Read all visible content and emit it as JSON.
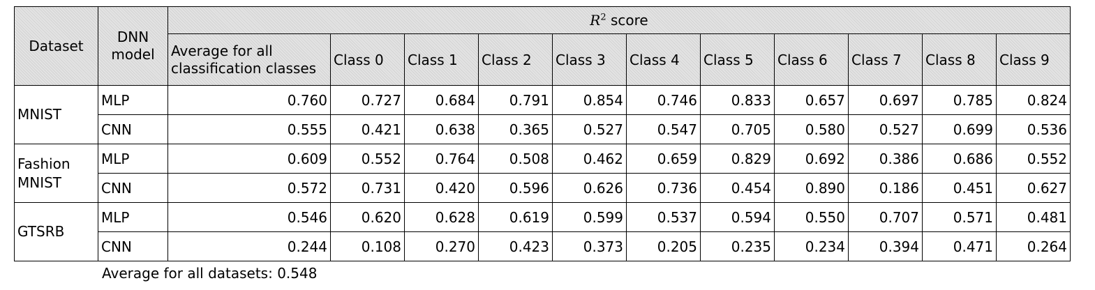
{
  "header": {
    "dataset_label": "Dataset",
    "model_label": "DNN model",
    "score_symbol": "R",
    "score_superscript": "2",
    "score_suffix": " score",
    "columns": [
      "Average for all classification classes",
      "Class 0",
      "Class 1",
      "Class 2",
      "Class 3",
      "Class 4",
      "Class 5",
      "Class 6",
      "Class 7",
      "Class 8",
      "Class 9"
    ]
  },
  "rows": [
    {
      "dataset": "MNIST",
      "model": "MLP",
      "values": [
        "0.760",
        "0.727",
        "0.684",
        "0.791",
        "0.854",
        "0.746",
        "0.833",
        "0.657",
        "0.697",
        "0.785",
        "0.824"
      ]
    },
    {
      "dataset": "MNIST",
      "model": "CNN",
      "values": [
        "0.555",
        "0.421",
        "0.638",
        "0.365",
        "0.527",
        "0.547",
        "0.705",
        "0.580",
        "0.527",
        "0.699",
        "0.536"
      ]
    },
    {
      "dataset": "Fashion MNIST",
      "model": "MLP",
      "values": [
        "0.609",
        "0.552",
        "0.764",
        "0.508",
        "0.462",
        "0.659",
        "0.829",
        "0.692",
        "0.386",
        "0.686",
        "0.552"
      ]
    },
    {
      "dataset": "Fashion MNIST",
      "model": "CNN",
      "values": [
        "0.572",
        "0.731",
        "0.420",
        "0.596",
        "0.626",
        "0.736",
        "0.454",
        "0.890",
        "0.186",
        "0.451",
        "0.627"
      ]
    },
    {
      "dataset": "GTSRB",
      "model": "MLP",
      "values": [
        "0.546",
        "0.620",
        "0.628",
        "0.619",
        "0.599",
        "0.537",
        "0.594",
        "0.550",
        "0.707",
        "0.571",
        "0.481"
      ]
    },
    {
      "dataset": "GTSRB",
      "model": "CNN",
      "values": [
        "0.244",
        "0.108",
        "0.270",
        "0.423",
        "0.373",
        "0.205",
        "0.235",
        "0.234",
        "0.394",
        "0.471",
        "0.264"
      ]
    }
  ],
  "footnote": "Average for all datasets: 0.548"
}
